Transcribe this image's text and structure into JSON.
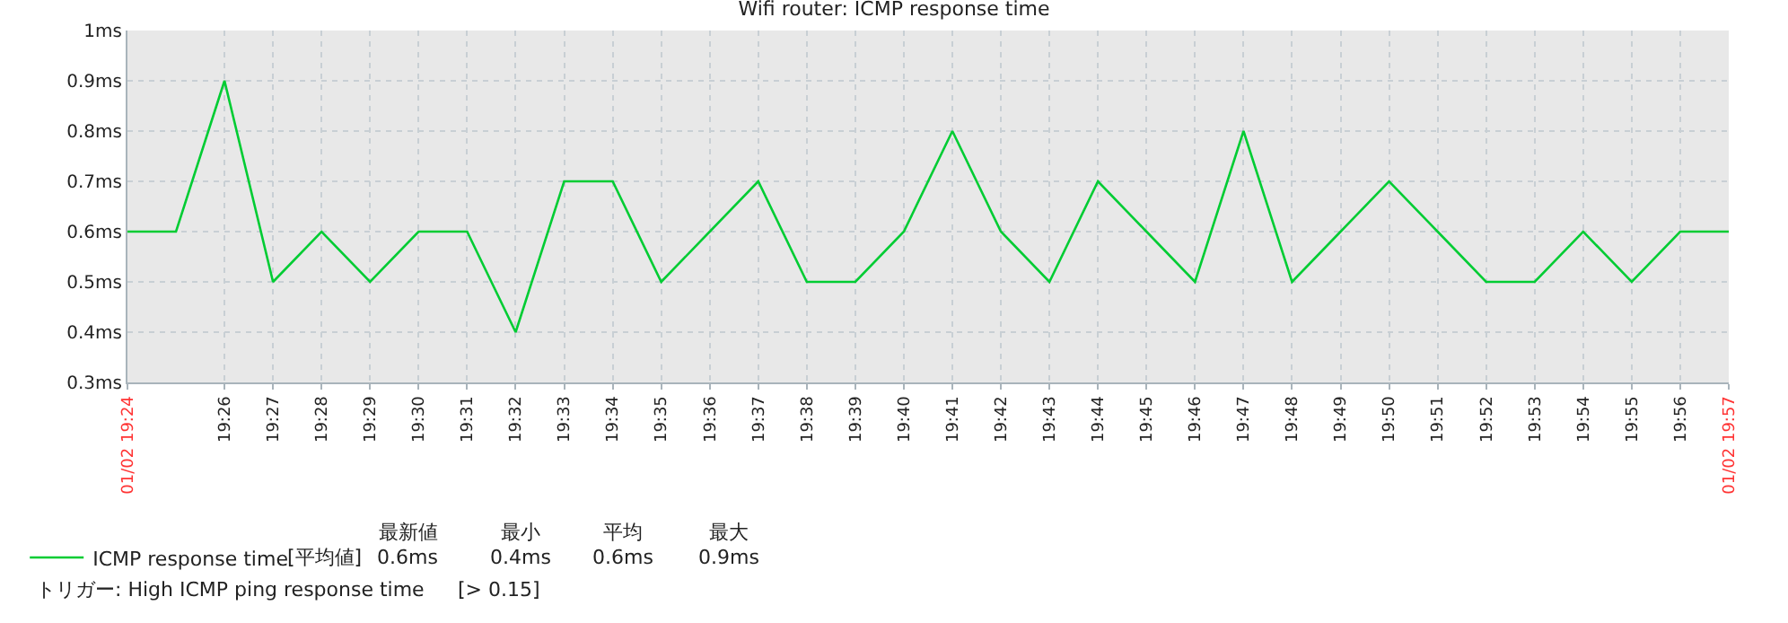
{
  "chart_data": {
    "type": "line",
    "title": "Wifi router: ICMP response time",
    "categories": [
      "01/02 19:24",
      null,
      "19:26",
      "19:27",
      "19:28",
      "19:29",
      "19:30",
      "19:31",
      "19:32",
      "19:33",
      "19:34",
      "19:35",
      "19:36",
      "19:37",
      "19:38",
      "19:39",
      "19:40",
      "19:41",
      "19:42",
      "19:43",
      "19:44",
      "19:45",
      "19:46",
      "19:47",
      "19:48",
      "19:49",
      "19:50",
      "19:51",
      "19:52",
      "19:53",
      "19:54",
      "19:55",
      "19:56",
      "01/02 19:57"
    ],
    "series": [
      {
        "name": "ICMP response time",
        "color": "#00cc33",
        "values": [
          0.6,
          0.6,
          0.9,
          0.5,
          0.6,
          0.5,
          0.6,
          0.6,
          0.4,
          0.7,
          0.7,
          0.5,
          0.6,
          0.7,
          0.5,
          0.5,
          0.6,
          0.8,
          0.6,
          0.5,
          0.7,
          0.6,
          0.5,
          0.8,
          0.5,
          0.6,
          0.7,
          0.6,
          0.5,
          0.5,
          0.6,
          0.5,
          0.6,
          0.6
        ]
      }
    ],
    "ylim": [
      0.3,
      1
    ],
    "yticks": [
      {
        "value": 0.3,
        "label": "0.3ms"
      },
      {
        "value": 0.4,
        "label": "0.4ms"
      },
      {
        "value": 0.5,
        "label": "0.5ms"
      },
      {
        "value": 0.6,
        "label": "0.6ms"
      },
      {
        "value": 0.7,
        "label": "0.7ms"
      },
      {
        "value": 0.8,
        "label": "0.8ms"
      },
      {
        "value": 0.9,
        "label": "0.9ms"
      },
      {
        "value": 1,
        "label": "1ms"
      }
    ],
    "grid": true,
    "legend": "bottom left",
    "marker": "none",
    "line_style": "solid",
    "annotations": [
      "[平均値]",
      "最新値",
      "0.6ms",
      "最小",
      "0.4ms",
      "平均",
      "0.6ms",
      "最大",
      "0.9ms",
      "トリガー: High ICMP ping response time",
      "[> 0.15]"
    ]
  }
}
